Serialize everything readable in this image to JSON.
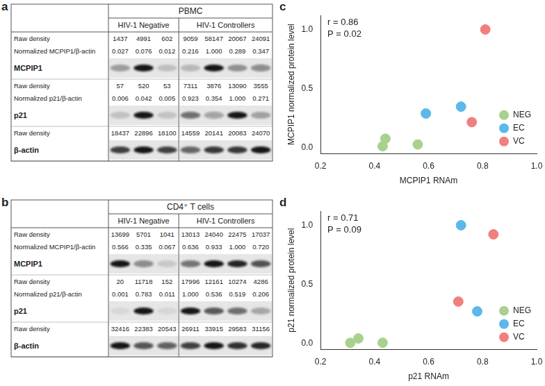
{
  "blots": [
    {
      "panel": "a",
      "title": "PBMC",
      "groups": [
        "HIV-1 Negative",
        "HIV-1 Controllers"
      ],
      "sections": [
        {
          "band": "MCPIP1",
          "rows": [
            {
              "label": "Raw density",
              "values": [
                [
                  1437,
                  4991,
                  602
                ],
                [
                  9059,
                  58147,
                  20067,
                  24091
                ]
              ]
            },
            {
              "label": "Normalized MCPIP1/β-actin",
              "values": [
                [
                  "0.027",
                  "0.076",
                  "0.012"
                ],
                [
                  "0.216",
                  "1.000",
                  "0.289",
                  "0.347"
                ]
              ]
            }
          ]
        },
        {
          "band": "p21",
          "rows": [
            {
              "label": "Raw density",
              "values": [
                [
                  57,
                  520,
                  53
                ],
                [
                  7311,
                  3876,
                  13090,
                  3555
                ]
              ]
            },
            {
              "label": "Normalized p21/β-actin",
              "values": [
                [
                  "0.006",
                  "0.042",
                  "0.005"
                ],
                [
                  "0.923",
                  "0.354",
                  "1.000",
                  "0.271"
                ]
              ]
            }
          ]
        },
        {
          "band": "β-actin",
          "rows": [
            {
              "label": "Raw density",
              "values": [
                [
                  18437,
                  22896,
                  18100
                ],
                [
                  14559,
                  20141,
                  20083,
                  24070
                ]
              ]
            }
          ]
        }
      ]
    },
    {
      "panel": "b",
      "title": "CD4⁺ T cells",
      "groups": [
        "HIV-1 Negative",
        "HIV-1 Controllers"
      ],
      "sections": [
        {
          "band": "MCPIP1",
          "rows": [
            {
              "label": "Raw density",
              "values": [
                [
                  13699,
                  5701,
                  1041
                ],
                [
                  13013,
                  24040,
                  22475,
                  17037
                ]
              ]
            },
            {
              "label": "Normalized MCPIP1/β-actin",
              "values": [
                [
                  "0.566",
                  "0.335",
                  "0.067"
                ],
                [
                  "0.636",
                  "0.933",
                  "1.000",
                  "0.720"
                ]
              ]
            }
          ]
        },
        {
          "band": "p21",
          "rows": [
            {
              "label": "Raw density",
              "values": [
                [
                  20,
                  11718,
                  152
                ],
                [
                  17996,
                  12161,
                  10274,
                  4286
                ]
              ]
            },
            {
              "label": "Normalized p21/β-actin",
              "values": [
                [
                  "0.001",
                  "0.783",
                  "0.011"
                ],
                [
                  "1.000",
                  "0.536",
                  "0.519",
                  "0.206"
                ]
              ]
            }
          ]
        },
        {
          "band": "β-actin",
          "rows": [
            {
              "label": "Raw density",
              "values": [
                [
                  32416,
                  22383,
                  20543
                ],
                [
                  26911,
                  33915,
                  29583,
                  31156
                ]
              ]
            }
          ]
        }
      ]
    }
  ],
  "chart_data": [
    {
      "panel": "c",
      "type": "scatter",
      "x_label": "MCPIP1 RNAm",
      "y_label": "MCPIP1 normalized protein level",
      "annotations": [
        "r = 0.86",
        "P = 0.02"
      ],
      "xlim": [
        0.2,
        1.0
      ],
      "xticks": [
        0.2,
        0.4,
        0.6,
        0.8,
        {
          "value": 1,
          "label": "1.0"
        }
      ],
      "ylim": [
        -0.05,
        1.12
      ],
      "yticks": [
        {
          "value": 0,
          "label": "0.0"
        },
        0.5,
        {
          "value": 1,
          "label": "1.0"
        }
      ],
      "grid": false,
      "legend": "lower right",
      "marker": "circle",
      "series": [
        {
          "name": "NEG",
          "color": "#a9d18e",
          "x": [
            0.43,
            0.44,
            0.56
          ],
          "values": [
            0.012,
            0.076,
            0.027
          ]
        },
        {
          "name": "EC",
          "color": "#5bb8e8",
          "x": [
            0.59,
            0.72
          ],
          "values": [
            0.289,
            0.347
          ]
        },
        {
          "name": "VC",
          "color": "#f08080",
          "x": [
            0.76,
            0.81
          ],
          "values": [
            0.216,
            1.0
          ]
        }
      ]
    },
    {
      "panel": "d",
      "type": "scatter",
      "x_label": "p21 RNAm",
      "y_label": "p21 normalized protein level",
      "annotations": [
        "r = 0.71",
        "P = 0.09"
      ],
      "xlim": [
        0.2,
        1.0
      ],
      "xticks": [
        0.2,
        0.4,
        0.6,
        0.8,
        {
          "value": 1,
          "label": "1.0"
        }
      ],
      "ylim": [
        -0.05,
        1.12
      ],
      "yticks": [
        {
          "value": 0,
          "label": "0.0"
        },
        0.5,
        {
          "value": 1,
          "label": "1.0"
        }
      ],
      "grid": false,
      "legend": "lower right",
      "marker": "circle",
      "series": [
        {
          "name": "NEG",
          "color": "#a9d18e",
          "x": [
            0.31,
            0.34,
            0.43
          ],
          "values": [
            0.005,
            0.042,
            0.006
          ]
        },
        {
          "name": "EC",
          "color": "#5bb8e8",
          "x": [
            0.72,
            0.78
          ],
          "values": [
            1.0,
            0.271
          ]
        },
        {
          "name": "VC",
          "color": "#f08080",
          "x": [
            0.71,
            0.84
          ],
          "values": [
            0.354,
            0.923
          ]
        }
      ]
    }
  ]
}
